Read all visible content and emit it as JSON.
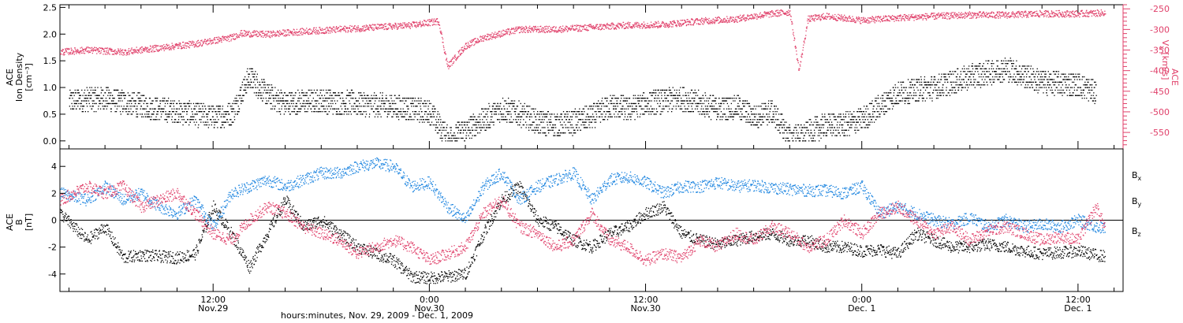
{
  "colors": {
    "black": "#000000",
    "density": "#000000",
    "speed": "#e0406a",
    "bx": "#000000",
    "by": "#1f86e0",
    "bz": "#e0406a"
  },
  "chart_data": [
    {
      "type": "scatter",
      "panel": "top",
      "ylabel_lines": [
        "ACE",
        "Ion Density",
        "[cm⁻³]"
      ],
      "ylim": [
        -0.15,
        2.55
      ],
      "yticks": [
        "0.0",
        "0.5",
        "1.0",
        "1.5",
        "2.0",
        "2.5"
      ],
      "ytick_values": [
        0.0,
        0.5,
        1.0,
        1.5,
        2.0,
        2.5
      ],
      "right_axis": {
        "label": "ACE V_x [km/s]",
        "label_parts": [
          "ACE",
          "V",
          "x",
          "[km/s]"
        ],
        "ylim": [
          -590,
          -240
        ],
        "yticks": [
          "-250",
          "-300",
          "-350",
          "-400",
          "-450",
          "-500",
          "-550"
        ],
        "ytick_values": [
          -250,
          -300,
          -350,
          -400,
          -450,
          -500,
          -550
        ]
      },
      "x_range_hours": [
        3.5,
        62.0
      ],
      "series": [
        {
          "name": "Ion Density",
          "color": "#000000",
          "x": [
            4,
            6,
            8,
            10,
            12,
            13,
            14,
            15,
            16,
            18,
            20,
            22,
            24,
            25,
            26,
            27,
            28,
            29,
            30,
            31,
            32,
            33,
            34,
            35,
            36,
            38,
            40,
            41,
            42,
            43,
            44,
            45,
            46,
            47,
            48,
            50,
            52,
            54,
            56,
            58,
            60,
            61
          ],
          "y": [
            0.75,
            0.8,
            0.65,
            0.55,
            0.45,
            0.5,
            1.2,
            0.85,
            0.7,
            0.75,
            0.7,
            0.65,
            0.55,
            0.05,
            0.2,
            0.4,
            0.6,
            0.5,
            0.35,
            0.3,
            0.35,
            0.45,
            0.65,
            0.6,
            0.7,
            0.8,
            0.6,
            0.65,
            0.45,
            0.55,
            0.05,
            0.15,
            0.3,
            0.3,
            0.4,
            0.9,
            1.0,
            1.2,
            1.35,
            1.1,
            1.05,
            0.9
          ]
        },
        {
          "name": "V_x",
          "color": "#e0406a",
          "x": [
            3.5,
            5,
            7,
            9,
            11,
            13,
            13.5,
            15,
            17,
            19,
            21,
            23,
            24.5,
            25,
            26,
            27,
            28,
            29,
            31,
            33,
            35,
            37,
            39,
            41,
            42,
            43,
            44,
            44.5,
            45,
            46,
            48,
            50,
            52,
            54,
            56,
            58,
            60,
            61.5
          ],
          "y": [
            -355,
            -350,
            -355,
            -345,
            -335,
            -320,
            -310,
            -312,
            -305,
            -300,
            -295,
            -290,
            -280,
            -390,
            -340,
            -320,
            -310,
            -300,
            -300,
            -295,
            -290,
            -288,
            -280,
            -275,
            -268,
            -262,
            -258,
            -400,
            -275,
            -268,
            -278,
            -272,
            -268,
            -265,
            -265,
            -262,
            -262,
            -260
          ]
        }
      ]
    },
    {
      "type": "scatter",
      "panel": "bottom",
      "ylabel_lines": [
        "ACE",
        "B",
        "[nT]"
      ],
      "ylim": [
        -5.3,
        5.3
      ],
      "yticks": [
        "4",
        "2",
        "0",
        "-2",
        "-4"
      ],
      "ytick_values": [
        4,
        2,
        0,
        -2,
        -4
      ],
      "legend_position": "right",
      "series": [
        {
          "name": "B_x",
          "label_parts": [
            "B",
            "x"
          ],
          "color": "#000000",
          "x": [
            3.5,
            5,
            6,
            7,
            8,
            9,
            10,
            11,
            12,
            13,
            14,
            15,
            16,
            17,
            18,
            19,
            20,
            21,
            22,
            23,
            24,
            25,
            26,
            27,
            28,
            29,
            30,
            31,
            32,
            33,
            34,
            35,
            36,
            37,
            38,
            39,
            40,
            41,
            42,
            43,
            44,
            45,
            46,
            47,
            48,
            49,
            50,
            51,
            52,
            53,
            54,
            55,
            56,
            57,
            58,
            59,
            60,
            61,
            61.5
          ],
          "y": [
            0.5,
            -1.5,
            -0.5,
            -2.8,
            -2.6,
            -2.7,
            -2.8,
            -2.5,
            1.0,
            -1.0,
            -3.5,
            -1.0,
            1.5,
            -0.5,
            0.0,
            -1.0,
            -2.0,
            -2.5,
            -3.0,
            -4.2,
            -4.3,
            -4.2,
            -4.0,
            -1.0,
            1.5,
            2.5,
            0.0,
            -0.5,
            -1.5,
            -2.0,
            -1.0,
            -0.5,
            0.5,
            1.0,
            -1.0,
            -1.5,
            -1.8,
            -1.5,
            -1.2,
            -1.0,
            -1.5,
            -1.5,
            -2.0,
            -2.0,
            -2.3,
            -2.2,
            -2.5,
            -1.0,
            -1.5,
            -2.0,
            -2.0,
            -1.8,
            -2.0,
            -2.3,
            -2.5,
            -2.4,
            -2.3,
            -2.6,
            -2.7
          ]
        },
        {
          "name": "B_y",
          "label_parts": [
            "B",
            "y"
          ],
          "color": "#1f86e0",
          "x": [
            3.5,
            5,
            6,
            7,
            8,
            9,
            10,
            11,
            12,
            13,
            14,
            15,
            16,
            17,
            18,
            19,
            20,
            21,
            22,
            23,
            24,
            25,
            26,
            27,
            28,
            29,
            30,
            31,
            32,
            33,
            34,
            35,
            36,
            37,
            38,
            39,
            40,
            41,
            42,
            43,
            44,
            45,
            46,
            47,
            48,
            49,
            50,
            51,
            52,
            53,
            54,
            55,
            56,
            57,
            58,
            59,
            60,
            61,
            61.5
          ],
          "y": [
            2.0,
            1.5,
            2.5,
            1.5,
            2.0,
            1.0,
            0.5,
            1.5,
            -0.5,
            2.0,
            2.5,
            3.0,
            2.5,
            3.0,
            3.5,
            3.5,
            4.0,
            4.2,
            4.0,
            2.5,
            2.8,
            1.0,
            0.0,
            2.5,
            3.5,
            1.5,
            2.5,
            3.0,
            3.5,
            1.5,
            3.0,
            3.2,
            2.8,
            2.0,
            2.5,
            2.5,
            2.8,
            2.5,
            2.6,
            2.4,
            2.3,
            2.2,
            2.2,
            2.0,
            2.5,
            0.5,
            1.0,
            0.5,
            0.0,
            -0.3,
            0.2,
            -0.5,
            0.0,
            -0.5,
            -0.3,
            -0.5,
            0.0,
            -0.5,
            -0.6
          ]
        },
        {
          "name": "B_z",
          "label_parts": [
            "B",
            "z"
          ],
          "color": "#e0406a",
          "x": [
            3.5,
            5,
            6,
            7,
            8,
            9,
            10,
            11,
            12,
            13,
            14,
            15,
            16,
            17,
            18,
            19,
            20,
            21,
            22,
            23,
            24,
            25,
            26,
            27,
            28,
            29,
            30,
            31,
            32,
            33,
            34,
            35,
            36,
            37,
            38,
            39,
            40,
            41,
            42,
            43,
            44,
            45,
            46,
            47,
            48,
            49,
            50,
            51,
            52,
            53,
            54,
            55,
            56,
            57,
            58,
            59,
            60,
            61,
            61.5
          ],
          "y": [
            1.5,
            2.5,
            2.0,
            2.5,
            1.0,
            1.5,
            2.0,
            0.5,
            -1.0,
            -1.5,
            0.0,
            1.0,
            0.5,
            -0.5,
            -1.0,
            -1.5,
            -2.5,
            -2.0,
            -1.5,
            -2.0,
            -3.0,
            -2.5,
            -2.0,
            0.5,
            1.5,
            -0.5,
            -1.0,
            -2.0,
            -1.5,
            0.5,
            -1.5,
            -2.0,
            -3.0,
            -2.5,
            -2.8,
            -1.5,
            -2.0,
            -1.0,
            -1.5,
            -0.5,
            -1.0,
            -2.0,
            -1.5,
            0.0,
            -1.0,
            0.5,
            1.0,
            0.0,
            -1.0,
            -0.5,
            -1.5,
            -0.8,
            -0.5,
            -1.0,
            -1.5,
            -1.2,
            -1.5,
            1.0,
            -0.6
          ]
        }
      ]
    }
  ],
  "x_axis": {
    "label": "hours:minutes, Nov. 29, 2009 - Dec. 1, 2009",
    "hours_range": [
      3.5,
      62.5
    ],
    "major_ticks": [
      {
        "hour": 12,
        "time": "12:00",
        "date": "Nov.29"
      },
      {
        "hour": 24,
        "time": "0:00",
        "date": "Nov.30"
      },
      {
        "hour": 36,
        "time": "12:00",
        "date": "Nov.30"
      },
      {
        "hour": 48,
        "time": "0:00",
        "date": "Dec. 1"
      },
      {
        "hour": 60,
        "time": "12:00",
        "date": "Dec. 1"
      }
    ]
  }
}
